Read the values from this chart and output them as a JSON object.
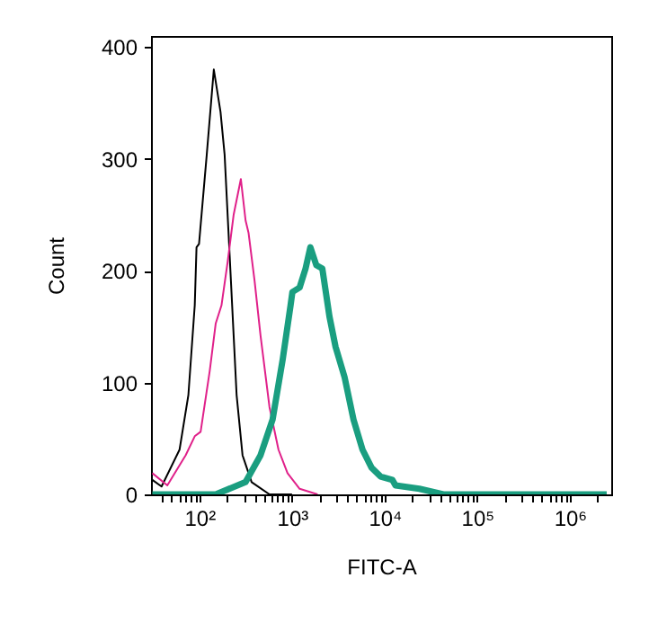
{
  "chart_data": {
    "type": "line",
    "xlabel": "FITC-A",
    "ylabel": "Count",
    "log": "x",
    "grid": false,
    "marker": "none",
    "line_style": "solid",
    "xlim": [
      30,
      2800000
    ],
    "ylim": [
      0,
      410
    ],
    "xticks": [
      {
        "value": 40,
        "label": null
      },
      {
        "value": 50,
        "label": null
      },
      {
        "value": 60,
        "label": null
      },
      {
        "value": 70,
        "label": null
      },
      {
        "value": 80,
        "label": null
      },
      {
        "value": 90,
        "label": null
      },
      {
        "value": 100,
        "label": "10²"
      },
      {
        "value": 200,
        "label": null
      },
      {
        "value": 300,
        "label": null
      },
      {
        "value": 400,
        "label": null
      },
      {
        "value": 500,
        "label": null
      },
      {
        "value": 600,
        "label": null
      },
      {
        "value": 700,
        "label": null
      },
      {
        "value": 800,
        "label": null
      },
      {
        "value": 900,
        "label": null
      },
      {
        "value": 1000,
        "label": "10³"
      },
      {
        "value": 2000,
        "label": null
      },
      {
        "value": 3000,
        "label": null
      },
      {
        "value": 4000,
        "label": null
      },
      {
        "value": 5000,
        "label": null
      },
      {
        "value": 6000,
        "label": null
      },
      {
        "value": 7000,
        "label": null
      },
      {
        "value": 8000,
        "label": null
      },
      {
        "value": 9000,
        "label": null
      },
      {
        "value": 10000,
        "label": "10⁴"
      },
      {
        "value": 20000,
        "label": null
      },
      {
        "value": 30000,
        "label": null
      },
      {
        "value": 40000,
        "label": null
      },
      {
        "value": 50000,
        "label": null
      },
      {
        "value": 60000,
        "label": null
      },
      {
        "value": 70000,
        "label": null
      },
      {
        "value": 80000,
        "label": null
      },
      {
        "value": 90000,
        "label": null
      },
      {
        "value": 100000,
        "label": "10⁵"
      },
      {
        "value": 200000,
        "label": null
      },
      {
        "value": 300000,
        "label": null
      },
      {
        "value": 400000,
        "label": null
      },
      {
        "value": 500000,
        "label": null
      },
      {
        "value": 600000,
        "label": null
      },
      {
        "value": 700000,
        "label": null
      },
      {
        "value": 800000,
        "label": null
      },
      {
        "value": 900000,
        "label": null
      },
      {
        "value": 1000000,
        "label": "10⁶"
      },
      {
        "value": 2000000,
        "label": null
      }
    ],
    "yticks": [
      0,
      100,
      200,
      300,
      400
    ],
    "series": [
      {
        "color": "#000000",
        "x": [
          31,
          39,
          61,
          76,
          89,
          93,
          99,
          120,
          143,
          169,
          187,
          217,
          252,
          292,
          366,
          571,
          1000
        ],
        "values": [
          13,
          7,
          40,
          89,
          169,
          221,
          224,
          304,
          380,
          342,
          304,
          197,
          89,
          35,
          11,
          0,
          0
        ]
      },
      {
        "color": "#e0218a",
        "x": [
          31,
          45,
          71,
          89,
          103,
          129,
          150,
          173,
          201,
          234,
          280,
          315,
          339,
          394,
          457,
          571,
          714,
          894,
          1208,
          1888
        ],
        "values": [
          19,
          8,
          35,
          52,
          56,
          110,
          153,
          169,
          207,
          250,
          282,
          245,
          234,
          191,
          142,
          78,
          40,
          19,
          5,
          0
        ]
      },
      {
        "color": "#1a9e80",
        "x": [
          31,
          150,
          315,
          457,
          617,
          794,
          964,
          1009,
          1208,
          1400,
          1578,
          1828,
          2123,
          2537,
          2950,
          3690,
          4610,
          5770,
          7210,
          9020,
          12100,
          13100,
          23700,
          43100,
          2500000
        ],
        "values": [
          0,
          0,
          11,
          35,
          67,
          121,
          169,
          181,
          185,
          202,
          221,
          205,
          202,
          159,
          132,
          105,
          67,
          40,
          24,
          16,
          13,
          8,
          5,
          0,
          0
        ]
      }
    ]
  }
}
